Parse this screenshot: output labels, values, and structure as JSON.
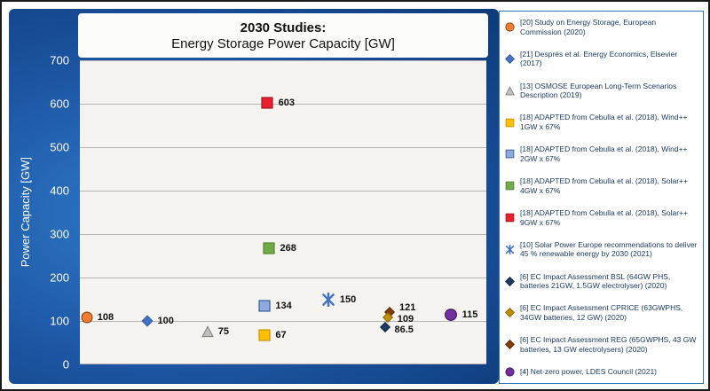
{
  "title": {
    "line1": "2030 Studies:",
    "line2": "Energy Storage Power Capacity [GW]"
  },
  "chart_data": {
    "type": "scatter",
    "title": "2030 Studies: Energy Storage Power Capacity [GW]",
    "xlabel": "",
    "ylabel": "Power Capacity [GW]",
    "ylim": [
      0,
      700
    ],
    "yticks": [
      0,
      100,
      200,
      300,
      400,
      500,
      600,
      700
    ],
    "grid": true,
    "legend_position": "right",
    "points": [
      {
        "id": "ec-energy-storage-study",
        "label": "108",
        "value": 108,
        "x": 0.017,
        "shape": "circle",
        "fill": "#ED7D31",
        "stroke": "#843C0C",
        "size": 14
      },
      {
        "id": "despres-2017",
        "label": "100",
        "value": 100,
        "x": 0.166,
        "shape": "diamond",
        "fill": "#4472C4",
        "stroke": "#2F5597",
        "size": 13
      },
      {
        "id": "osmose-2019",
        "label": "75",
        "value": 75,
        "x": 0.314,
        "shape": "triangle",
        "fill": "#BFBFBF",
        "stroke": "#7F7F7F",
        "size": 14
      },
      {
        "id": "cebulla-wind-1gw",
        "label": "67",
        "value": 67,
        "x": 0.454,
        "shape": "square",
        "fill": "#FFC000",
        "stroke": "#BF8F00",
        "size": 15
      },
      {
        "id": "cebulla-wind-2gw",
        "label": "134",
        "value": 134,
        "x": 0.454,
        "shape": "square",
        "fill": "#8FAADC",
        "stroke": "#2F5597",
        "size": 15
      },
      {
        "id": "cebulla-solar-4gw",
        "label": "268",
        "value": 268,
        "x": 0.465,
        "shape": "square",
        "fill": "#70AD47",
        "stroke": "#507E32",
        "size": 15
      },
      {
        "id": "cebulla-solar-9gw",
        "label": "603",
        "value": 603,
        "x": 0.461,
        "shape": "square",
        "fill": "#E8202C",
        "stroke": "#A50E1F",
        "size": 15
      },
      {
        "id": "solar-power-europe",
        "label": "150",
        "value": 150,
        "x": 0.611,
        "shape": "xstar",
        "fill": "#4472C4",
        "stroke": "#2F5597",
        "size": 16
      },
      {
        "id": "ec-ia-reg",
        "label": "121",
        "value": 121,
        "x": 0.762,
        "shape": "diamond",
        "fill": "#843C0C",
        "stroke": "#4D2300",
        "size": 12,
        "label_dy": -5
      },
      {
        "id": "ec-ia-cprice",
        "label": "109",
        "value": 109,
        "x": 0.757,
        "shape": "diamond",
        "fill": "#BF8F00",
        "stroke": "#7F5F00",
        "size": 12,
        "label_dy": 2
      },
      {
        "id": "ec-ia-bsl",
        "label": "86.5",
        "value": 86.5,
        "x": 0.75,
        "shape": "diamond",
        "fill": "#1F3864",
        "stroke": "#10203B",
        "size": 12,
        "label_dy": 3
      },
      {
        "id": "ldes-net-zero",
        "label": "115",
        "value": 115,
        "x": 0.913,
        "shape": "circle",
        "fill": "#7030A0",
        "stroke": "#3B1556",
        "size": 15
      }
    ]
  },
  "legend": {
    "items": [
      {
        "label": "[20] Study on Energy Storage, European Commission (2020)",
        "shape": "circle",
        "fill": "#ED7D31",
        "stroke": "#843C0C"
      },
      {
        "label": "[21] Després et al. Energy Economics, Elsevier (2017)",
        "shape": "diamond",
        "fill": "#4472C4",
        "stroke": "#2F5597"
      },
      {
        "label": "[13] OSMOSE European Long-Term Scenarios Description (2019)",
        "shape": "triangle",
        "fill": "#BFBFBF",
        "stroke": "#7F7F7F"
      },
      {
        "label": "[18] ADAPTED from Cebulla et al. (2018), Wind++ 1GW x 67%",
        "shape": "square",
        "fill": "#FFC000",
        "stroke": "#BF8F00"
      },
      {
        "label": "[18] ADAPTED from Cebulla et al. (2018), Wind++ 2GW x 67%",
        "shape": "square",
        "fill": "#8FAADC",
        "stroke": "#2F5597"
      },
      {
        "label": "[18] ADAPTED from Cebulla et al. (2018), Solar++ 4GW x 67%",
        "shape": "square",
        "fill": "#70AD47",
        "stroke": "#507E32"
      },
      {
        "label": "[18] ADAPTED from Cebulla et al. (2018), Solar++ 9GW x 67%",
        "shape": "square",
        "fill": "#E8202C",
        "stroke": "#A50E1F"
      },
      {
        "label": "[10] Solar Power Europe recommendations to deliver 45 % renewable energy by 2030 (2021)",
        "shape": "xstar",
        "fill": "#4472C4",
        "stroke": "#2F5597"
      },
      {
        "label": "[6] EC Impact Assessment BSL (64GW PHS, batteries 21GW, 1.5GW electrolyser) (2020)",
        "shape": "diamond",
        "fill": "#1F3864",
        "stroke": "#10203B"
      },
      {
        "label": "[6] EC Impact Assessment CPRICE (63GWPHS, 34GW batteries, 12 GW) (2020)",
        "shape": "diamond",
        "fill": "#BF8F00",
        "stroke": "#7F5F00"
      },
      {
        "label": "[6] EC Impact Assessment REG (65GWPHS, 43 GW batteries, 13 GW electrolysers) (2020)",
        "shape": "diamond",
        "fill": "#843C0C",
        "stroke": "#4D2300"
      },
      {
        "label": "[4] Net-zero power,  LDES Council (2021)",
        "shape": "circle",
        "fill": "#7030A0",
        "stroke": "#3B1556"
      }
    ]
  }
}
